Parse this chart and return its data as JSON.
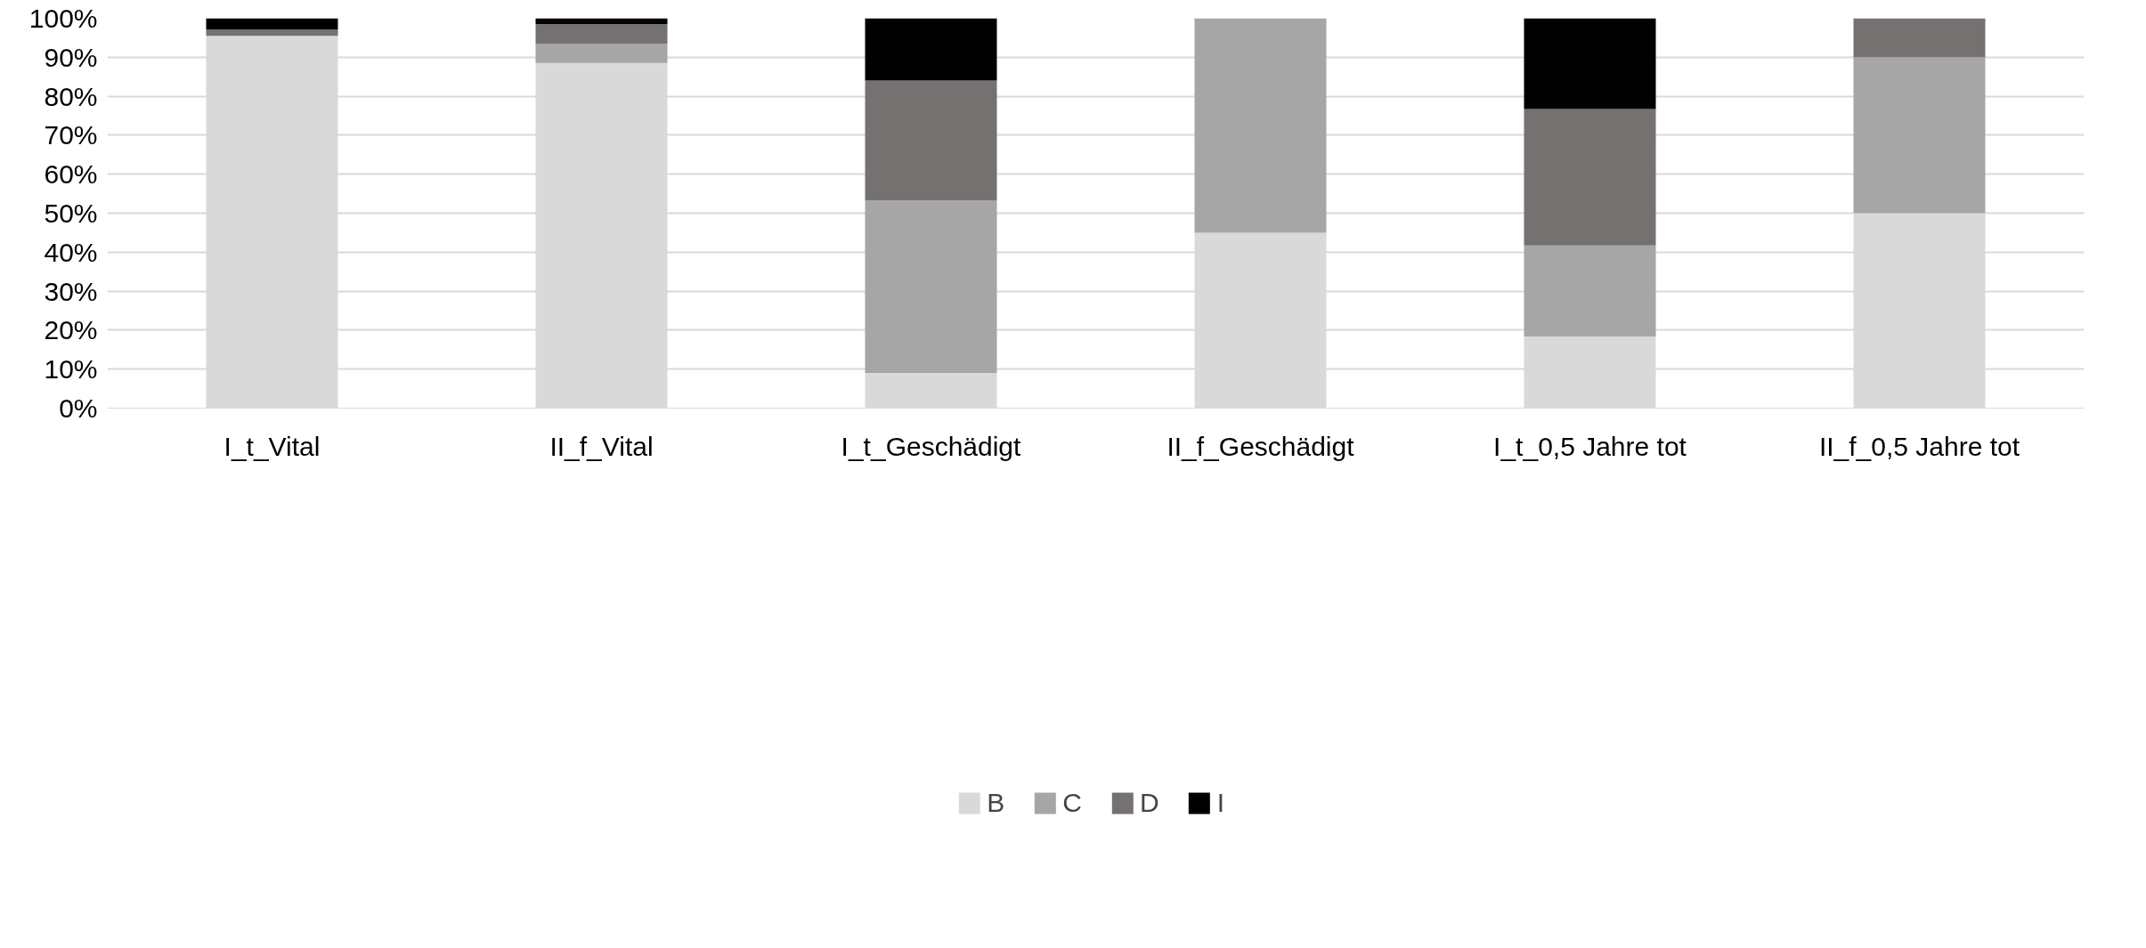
{
  "chart_data": {
    "type": "bar",
    "stacked": true,
    "categories": [
      "I_t_Vital",
      "II_f_Vital",
      "I_t_Geschädigt",
      "II_f_Geschädigt",
      "I_t_0,5 Jahre tot",
      "II_f_0,5 Jahre tot"
    ],
    "series": [
      {
        "name": "B",
        "color": "#d9d9d9",
        "values": [
          95.5,
          88.5,
          9,
          45,
          18.4,
          50
        ]
      },
      {
        "name": "C",
        "color": "#a6a6a6",
        "values": [
          0,
          5,
          44.3,
          55,
          23.3,
          40
        ]
      },
      {
        "name": "D",
        "color": "#767171",
        "values": [
          1.6,
          5,
          30.7,
          0,
          35,
          10
        ]
      },
      {
        "name": "I",
        "color": "#000000",
        "values": [
          2.9,
          1.5,
          16,
          0,
          23.3,
          0
        ]
      }
    ],
    "ylim": [
      0,
      100
    ],
    "yticks": [
      {
        "value": 0,
        "label": "0%"
      },
      {
        "value": 10,
        "label": "10%"
      },
      {
        "value": 20,
        "label": "20%"
      },
      {
        "value": 30,
        "label": "30%"
      },
      {
        "value": 40,
        "label": "40%"
      },
      {
        "value": 50,
        "label": "50%"
      },
      {
        "value": 60,
        "label": "60%"
      },
      {
        "value": 70,
        "label": "70%"
      },
      {
        "value": 80,
        "label": "80%"
      },
      {
        "value": 90,
        "label": "90%"
      },
      {
        "value": 100,
        "label": "100%"
      }
    ],
    "grid": "y",
    "legend": "bottom"
  }
}
